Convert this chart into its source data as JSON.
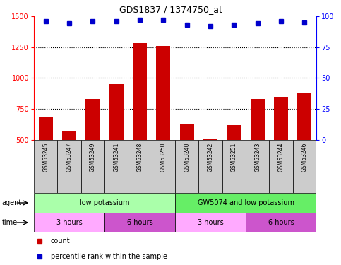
{
  "title": "GDS1837 / 1374750_at",
  "samples": [
    "GSM53245",
    "GSM53247",
    "GSM53249",
    "GSM53241",
    "GSM53248",
    "GSM53250",
    "GSM53240",
    "GSM53242",
    "GSM53251",
    "GSM53243",
    "GSM53244",
    "GSM53246"
  ],
  "counts": [
    690,
    570,
    830,
    950,
    1280,
    1260,
    630,
    510,
    620,
    830,
    850,
    880
  ],
  "percentile": [
    96,
    94,
    96,
    96,
    97,
    97,
    93,
    92,
    93,
    94,
    96,
    95
  ],
  "bar_color": "#cc0000",
  "dot_color": "#0000cc",
  "ylim_left": [
    500,
    1500
  ],
  "ylim_right": [
    0,
    100
  ],
  "yticks_left": [
    500,
    750,
    1000,
    1250,
    1500
  ],
  "yticks_right": [
    0,
    25,
    50,
    75,
    100
  ],
  "agent_groups": [
    {
      "label": "low potassium",
      "start": 0,
      "end": 6,
      "color": "#aaffaa"
    },
    {
      "label": "GW5074 and low potassium",
      "start": 6,
      "end": 12,
      "color": "#66ee66"
    }
  ],
  "time_groups": [
    {
      "label": "3 hours",
      "start": 0,
      "end": 3,
      "color": "#ffaaff"
    },
    {
      "label": "6 hours",
      "start": 3,
      "end": 6,
      "color": "#cc55cc"
    },
    {
      "label": "3 hours",
      "start": 6,
      "end": 9,
      "color": "#ffaaff"
    },
    {
      "label": "6 hours",
      "start": 9,
      "end": 12,
      "color": "#cc55cc"
    }
  ],
  "grid_color": "#aaaaaa",
  "bg_color": "#ffffff",
  "sample_bg_color": "#cccccc",
  "legend_count_color": "#cc0000",
  "legend_pct_color": "#0000cc"
}
